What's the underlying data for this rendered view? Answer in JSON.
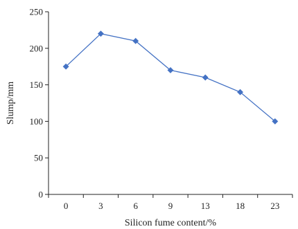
{
  "chart_data": {
    "type": "line",
    "categories": [
      "0",
      "3",
      "6",
      "9",
      "13",
      "18",
      "23"
    ],
    "series": [
      {
        "values": [
          175,
          220,
          210,
          170,
          160,
          140,
          100
        ],
        "color": "#4472C4",
        "marker": "diamond"
      }
    ],
    "xlabel": "Silicon fume content/%",
    "ylabel": "Slump/mm",
    "ylim": [
      0,
      250
    ],
    "yticks": [
      0,
      50,
      100,
      150,
      200,
      250
    ],
    "grid": false,
    "legend": "none",
    "axis_color": "#222222"
  }
}
